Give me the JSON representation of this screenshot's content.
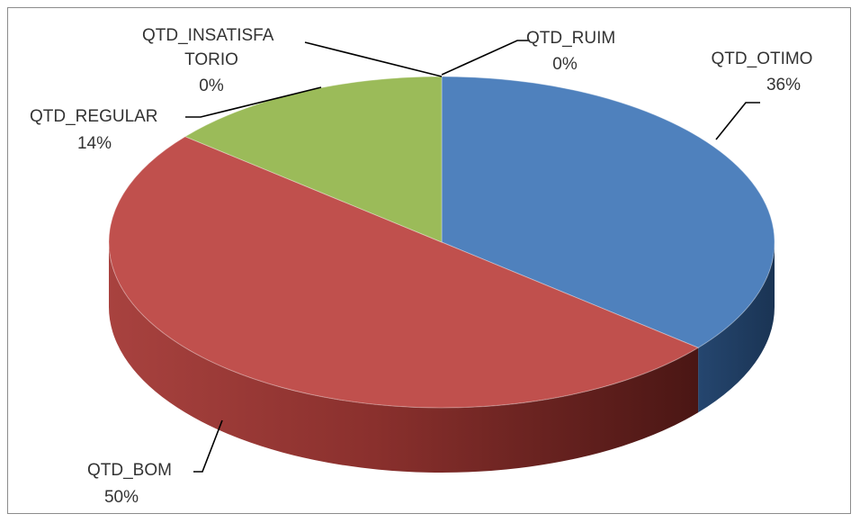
{
  "chart_data": {
    "type": "pie",
    "title": "",
    "slices": [
      {
        "name": "QTD_OTIMO",
        "value": 36,
        "label": "QTD_OTIMO",
        "pct_label": "36%",
        "color": "#4f81bd",
        "side_color": "#2a4e7a"
      },
      {
        "name": "QTD_BOM",
        "value": 50,
        "label": "QTD_BOM",
        "pct_label": "50%",
        "color": "#c0504d",
        "side_color": "#8e3230"
      },
      {
        "name": "QTD_REGULAR",
        "value": 14,
        "label": "QTD_REGULAR",
        "pct_label": "14%",
        "color": "#9bbb59",
        "side_color": "#6b8a32"
      },
      {
        "name": "QTD_INSATISFATORIO",
        "value": 0,
        "label_lines": [
          "QTD_INSATISFA",
          "TORIO"
        ],
        "pct_label": "0%",
        "color": "#8064a2",
        "side_color": "#5a4574"
      },
      {
        "name": "QTD_RUIM",
        "value": 0,
        "label": "QTD_RUIM",
        "pct_label": "0%",
        "color": "#4bacc6",
        "side_color": "#2f7f94"
      }
    ],
    "style": "3d-pie",
    "legend": "none"
  }
}
